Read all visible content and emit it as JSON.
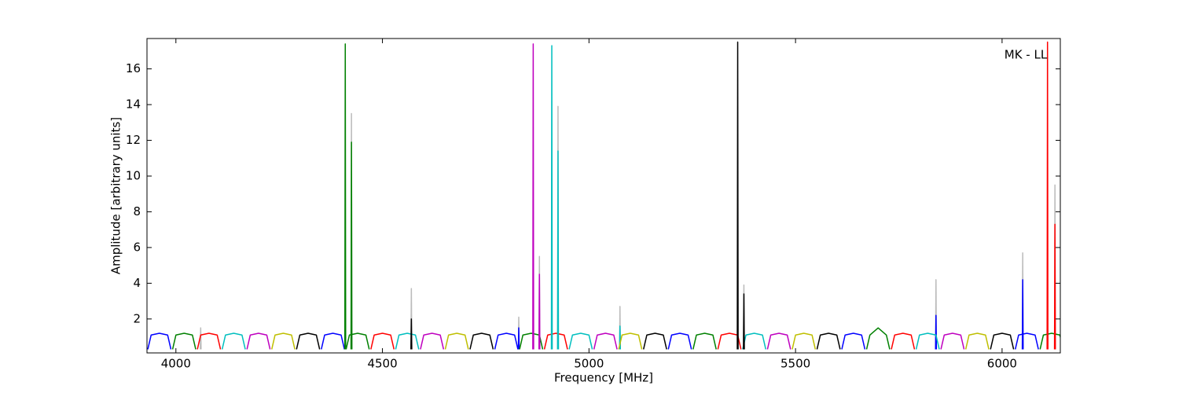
{
  "chart_data": {
    "type": "line",
    "annotation": "MK - LL",
    "xlabel": "Frequency [MHz]",
    "ylabel": "Amplitude [arbitrary units]",
    "xlim": [
      3930,
      6141
    ],
    "ylim": [
      0.1,
      17.7
    ],
    "xticks": [
      4000,
      4500,
      5000,
      5500,
      6000
    ],
    "yticks": [
      2,
      4,
      6,
      8,
      10,
      12,
      14,
      16
    ],
    "grid": false,
    "series": [
      {
        "color": "#bbbbbb",
        "x": [
          4059,
          4060,
          4061,
          null,
          4424,
          4425,
          4426,
          null,
          4569,
          4570,
          4571,
          null,
          4829,
          4830,
          4831,
          null,
          4879,
          4880,
          4881,
          null,
          4924,
          4925,
          4926,
          null,
          5074,
          5075,
          5076,
          null,
          5374,
          5375,
          5376,
          null,
          5839,
          5840,
          5841,
          null,
          6049,
          6050,
          6051,
          null,
          6127,
          6128,
          6129
        ],
        "values": [
          0.3,
          1.5,
          0.3,
          null,
          0.3,
          13.5,
          0.3,
          null,
          0.3,
          3.7,
          0.3,
          null,
          0.3,
          2.1,
          0.3,
          null,
          0.3,
          5.5,
          0.3,
          null,
          0.3,
          13.9,
          0.3,
          null,
          0.3,
          2.7,
          0.3,
          null,
          0.3,
          3.9,
          0.3,
          null,
          0.3,
          4.2,
          0.3,
          null,
          0.3,
          5.7,
          0.3,
          null,
          0.3,
          9.5,
          0.3
        ]
      },
      {
        "color": "#0000ff",
        "x": [
          3932,
          3940,
          3960,
          3980,
          3988,
          null,
          4352,
          4360,
          4380,
          4400,
          4408,
          null,
          4772,
          4780,
          4800,
          4820,
          4828,
          null,
          4829,
          4830,
          4831,
          null,
          5192,
          5200,
          5220,
          5240,
          5248,
          null,
          5612,
          5620,
          5640,
          5660,
          5668,
          null,
          5839,
          5840,
          5841,
          null,
          6032,
          6040,
          6060,
          6080,
          6088,
          null,
          6049,
          6050,
          6051
        ],
        "values": [
          0.3,
          1.1,
          1.2,
          1.1,
          0.3,
          null,
          0.3,
          1.1,
          1.2,
          1.1,
          0.3,
          null,
          0.3,
          1.1,
          1.2,
          1.1,
          0.3,
          null,
          0.3,
          1.5,
          0.3,
          null,
          0.3,
          1.1,
          1.2,
          1.1,
          0.3,
          null,
          0.3,
          1.1,
          1.2,
          1.1,
          0.3,
          null,
          0.3,
          2.2,
          0.3,
          null,
          0.3,
          1.1,
          1.2,
          1.1,
          0.3,
          null,
          0.3,
          4.2,
          0.3
        ]
      },
      {
        "color": "#008000",
        "x": [
          3992,
          4000,
          4020,
          4040,
          4048,
          null,
          4412,
          4420,
          4440,
          4460,
          4468,
          null,
          4409,
          4410,
          4411,
          null,
          4424,
          4425,
          4426,
          null,
          4832,
          4840,
          4860,
          4880,
          4888,
          null,
          5252,
          5260,
          5280,
          5300,
          5308,
          null,
          5672,
          5680,
          5700,
          5720,
          5728,
          null,
          6092,
          6100,
          6120,
          6140,
          6148
        ],
        "values": [
          0.3,
          1.1,
          1.2,
          1.1,
          0.3,
          null,
          0.3,
          1.1,
          1.2,
          1.1,
          0.3,
          null,
          0.3,
          17.4,
          0.3,
          null,
          0.3,
          11.9,
          0.3,
          null,
          0.3,
          1.1,
          1.2,
          1.1,
          0.3,
          null,
          0.3,
          1.1,
          1.2,
          1.1,
          0.3,
          null,
          0.3,
          1.1,
          1.5,
          1.1,
          0.3,
          null,
          0.3,
          1.1,
          1.2,
          1.1,
          0.3
        ]
      },
      {
        "color": "#ff0000",
        "x": [
          4052,
          4060,
          4080,
          4100,
          4108,
          null,
          4472,
          4480,
          4500,
          4520,
          4528,
          null,
          4892,
          4900,
          4920,
          4940,
          4948,
          null,
          5312,
          5320,
          5340,
          5360,
          5368,
          null,
          5732,
          5740,
          5760,
          5780,
          5788,
          null,
          6109,
          6110,
          6111,
          null,
          6127,
          6128,
          6129
        ],
        "values": [
          0.3,
          1.1,
          1.2,
          1.1,
          0.3,
          null,
          0.3,
          1.1,
          1.2,
          1.1,
          0.3,
          null,
          0.3,
          1.1,
          1.2,
          1.1,
          0.3,
          null,
          0.3,
          1.1,
          1.2,
          1.1,
          0.3,
          null,
          0.3,
          1.1,
          1.2,
          1.1,
          0.3,
          null,
          0.3,
          17.5,
          0.3,
          null,
          0.3,
          7.3,
          0.3
        ]
      },
      {
        "color": "#00bfbf",
        "x": [
          4112,
          4120,
          4140,
          4160,
          4168,
          null,
          4532,
          4540,
          4560,
          4580,
          4588,
          null,
          4909,
          4910,
          4911,
          null,
          4924,
          4925,
          4926,
          null,
          4952,
          4960,
          4980,
          5000,
          5008,
          null,
          5074,
          5075,
          5076,
          null,
          5372,
          5380,
          5400,
          5420,
          5428,
          null,
          5792,
          5800,
          5820,
          5840,
          5848
        ],
        "values": [
          0.3,
          1.1,
          1.2,
          1.1,
          0.3,
          null,
          0.3,
          1.1,
          1.2,
          1.1,
          0.3,
          null,
          0.3,
          17.3,
          0.3,
          null,
          0.3,
          11.4,
          0.3,
          null,
          0.3,
          1.1,
          1.2,
          1.1,
          0.3,
          null,
          0.3,
          1.6,
          0.3,
          null,
          0.3,
          1.1,
          1.2,
          1.1,
          0.3,
          null,
          0.3,
          1.1,
          1.2,
          1.1,
          0.3
        ]
      },
      {
        "color": "#bf00bf",
        "x": [
          4172,
          4180,
          4200,
          4220,
          4228,
          null,
          4592,
          4600,
          4620,
          4640,
          4648,
          null,
          4864,
          4865,
          4866,
          null,
          4879,
          4880,
          4881,
          null,
          5012,
          5020,
          5040,
          5060,
          5068,
          null,
          5432,
          5440,
          5460,
          5480,
          5488,
          null,
          5852,
          5860,
          5880,
          5900,
          5908
        ],
        "values": [
          0.3,
          1.1,
          1.2,
          1.1,
          0.3,
          null,
          0.3,
          1.1,
          1.2,
          1.1,
          0.3,
          null,
          0.3,
          17.4,
          0.3,
          null,
          0.3,
          4.5,
          0.3,
          null,
          0.3,
          1.1,
          1.2,
          1.1,
          0.3,
          null,
          0.3,
          1.1,
          1.2,
          1.1,
          0.3,
          null,
          0.3,
          1.1,
          1.2,
          1.1,
          0.3
        ]
      },
      {
        "color": "#bfbf00",
        "x": [
          4232,
          4240,
          4260,
          4280,
          4288,
          null,
          4652,
          4660,
          4680,
          4700,
          4708,
          null,
          5072,
          5080,
          5100,
          5120,
          5128,
          null,
          5492,
          5500,
          5520,
          5540,
          5548,
          null,
          5912,
          5920,
          5940,
          5960,
          5968
        ],
        "values": [
          0.3,
          1.1,
          1.2,
          1.1,
          0.3,
          null,
          0.3,
          1.1,
          1.2,
          1.1,
          0.3,
          null,
          0.3,
          1.1,
          1.2,
          1.1,
          0.3,
          null,
          0.3,
          1.1,
          1.2,
          1.1,
          0.3,
          null,
          0.3,
          1.1,
          1.2,
          1.1,
          0.3
        ]
      },
      {
        "color": "#000000",
        "x": [
          4292,
          4300,
          4320,
          4340,
          4348,
          null,
          4569,
          4570,
          4571,
          null,
          4712,
          4720,
          4740,
          4760,
          4768,
          null,
          5132,
          5140,
          5160,
          5180,
          5188,
          null,
          5359,
          5360,
          5361,
          null,
          5374,
          5375,
          5376,
          null,
          5552,
          5560,
          5580,
          5600,
          5608,
          null,
          5972,
          5980,
          6000,
          6020,
          6028
        ],
        "values": [
          0.3,
          1.1,
          1.2,
          1.1,
          0.3,
          null,
          0.3,
          2.0,
          0.3,
          null,
          0.3,
          1.1,
          1.2,
          1.1,
          0.3,
          null,
          0.3,
          1.1,
          1.2,
          1.1,
          0.3,
          null,
          0.3,
          17.5,
          0.3,
          null,
          0.3,
          3.4,
          0.3,
          null,
          0.3,
          1.1,
          1.2,
          1.1,
          0.3,
          null,
          0.3,
          1.1,
          1.2,
          1.1,
          0.3
        ]
      }
    ]
  }
}
